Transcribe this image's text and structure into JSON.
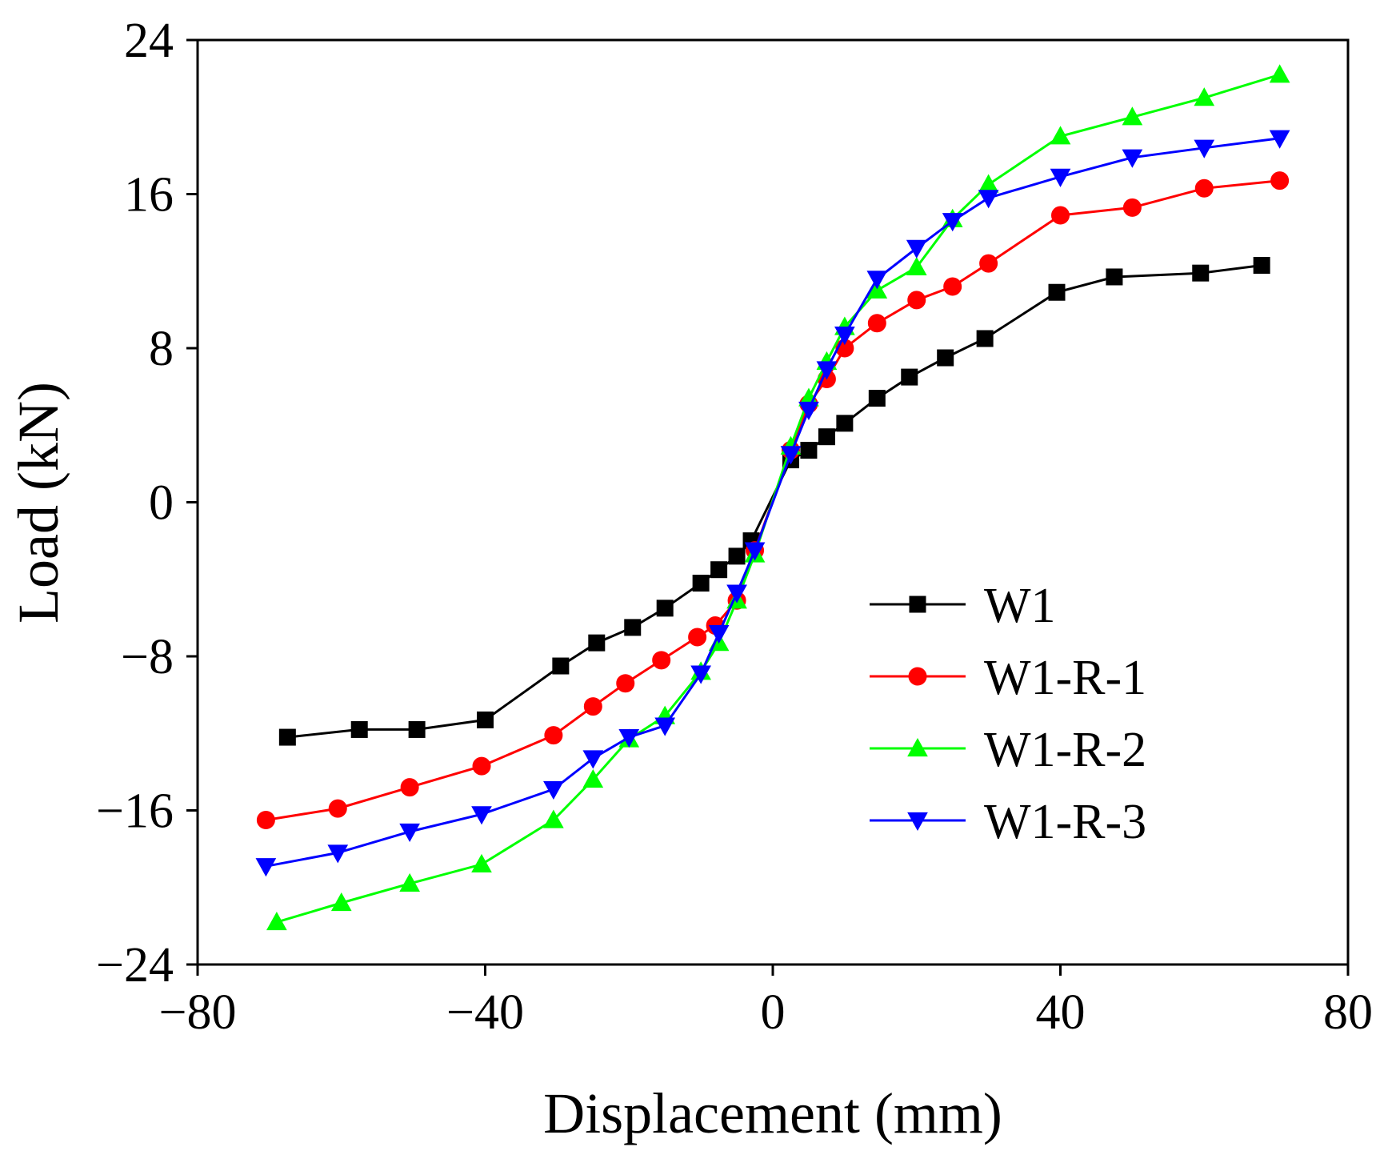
{
  "chart_data": {
    "type": "line",
    "title": "",
    "xlabel": "Displacement (mm)",
    "ylabel": "Load (kN)",
    "xlim": [
      -80,
      80
    ],
    "ylim": [
      -24,
      24
    ],
    "xticks": [
      -80,
      -40,
      0,
      40,
      80
    ],
    "yticks": [
      -24,
      -16,
      -8,
      0,
      8,
      16,
      24
    ],
    "xtick_labels": [
      "−80",
      "−40",
      "0",
      "40",
      "80"
    ],
    "ytick_labels": [
      "−24",
      "−16",
      "−8",
      "0",
      "8",
      "16",
      "24"
    ],
    "grid": false,
    "legend_position": "center-right",
    "series": [
      {
        "name": "W1",
        "color": "#000000",
        "marker": "square",
        "points": [
          [
            -67.5,
            -12.2
          ],
          [
            -57.5,
            -11.8
          ],
          [
            -49.5,
            -11.8
          ],
          [
            -40.0,
            -11.3
          ],
          [
            -29.5,
            -8.5
          ],
          [
            -24.5,
            -7.3
          ],
          [
            -19.5,
            -6.5
          ],
          [
            -15.0,
            -5.5
          ],
          [
            -10.0,
            -4.2
          ],
          [
            -7.5,
            -3.5
          ],
          [
            -5.0,
            -2.8
          ],
          [
            -3.0,
            -2.0
          ],
          [
            2.5,
            2.2
          ],
          [
            5.0,
            2.7
          ],
          [
            7.5,
            3.4
          ],
          [
            10.0,
            4.1
          ],
          [
            14.5,
            5.4
          ],
          [
            19.0,
            6.5
          ],
          [
            24.0,
            7.5
          ],
          [
            29.5,
            8.5
          ],
          [
            39.5,
            10.9
          ],
          [
            47.5,
            11.7
          ],
          [
            59.5,
            11.9
          ],
          [
            68.0,
            12.3
          ]
        ]
      },
      {
        "name": "W1-R-1",
        "color": "#ff0000",
        "marker": "circle",
        "points": [
          [
            -70.5,
            -16.5
          ],
          [
            -60.5,
            -15.9
          ],
          [
            -50.5,
            -14.8
          ],
          [
            -40.5,
            -13.7
          ],
          [
            -30.5,
            -12.1
          ],
          [
            -25.0,
            -10.6
          ],
          [
            -20.5,
            -9.4
          ],
          [
            -15.5,
            -8.2
          ],
          [
            -10.5,
            -7.0
          ],
          [
            -8.0,
            -6.4
          ],
          [
            -5.0,
            -5.1
          ],
          [
            -2.5,
            -2.5
          ],
          [
            2.5,
            2.7
          ],
          [
            5.0,
            5.1
          ],
          [
            7.5,
            6.4
          ],
          [
            10.0,
            8.0
          ],
          [
            14.5,
            9.3
          ],
          [
            20.0,
            10.5
          ],
          [
            25.0,
            11.2
          ],
          [
            30.0,
            12.4
          ],
          [
            40.0,
            14.9
          ],
          [
            50.0,
            15.3
          ],
          [
            60.0,
            16.3
          ],
          [
            70.5,
            16.7
          ]
        ]
      },
      {
        "name": "W1-R-2",
        "color": "#00ff00",
        "marker": "triangle-up",
        "points": [
          [
            -69.0,
            -21.8
          ],
          [
            -60.0,
            -20.8
          ],
          [
            -50.5,
            -19.8
          ],
          [
            -40.5,
            -18.8
          ],
          [
            -30.5,
            -16.5
          ],
          [
            -25.0,
            -14.4
          ],
          [
            -20.0,
            -12.3
          ],
          [
            -15.0,
            -11.1
          ],
          [
            -10.0,
            -8.8
          ],
          [
            -7.5,
            -7.3
          ],
          [
            -5.0,
            -5.1
          ],
          [
            -2.5,
            -2.7
          ],
          [
            2.5,
            2.9
          ],
          [
            5.0,
            5.4
          ],
          [
            7.5,
            7.3
          ],
          [
            10.0,
            9.1
          ],
          [
            14.5,
            11.0
          ],
          [
            20.0,
            12.2
          ],
          [
            25.0,
            14.7
          ],
          [
            30.0,
            16.5
          ],
          [
            40.0,
            19.0
          ],
          [
            50.0,
            20.0
          ],
          [
            60.0,
            21.0
          ],
          [
            70.5,
            22.2
          ]
        ]
      },
      {
        "name": "W1-R-3",
        "color": "#0000ff",
        "marker": "triangle-down",
        "points": [
          [
            -70.5,
            -18.9
          ],
          [
            -60.5,
            -18.2
          ],
          [
            -50.5,
            -17.1
          ],
          [
            -40.5,
            -16.2
          ],
          [
            -30.5,
            -14.9
          ],
          [
            -25.0,
            -13.3
          ],
          [
            -20.0,
            -12.2
          ],
          [
            -15.0,
            -11.6
          ],
          [
            -10.0,
            -8.9
          ],
          [
            -7.5,
            -6.8
          ],
          [
            -5.0,
            -4.7
          ],
          [
            -2.5,
            -2.5
          ],
          [
            2.5,
            2.5
          ],
          [
            5.0,
            4.8
          ],
          [
            7.5,
            6.9
          ],
          [
            10.0,
            8.7
          ],
          [
            14.5,
            11.6
          ],
          [
            20.0,
            13.2
          ],
          [
            25.0,
            14.6
          ],
          [
            30.0,
            15.8
          ],
          [
            40.0,
            16.9
          ],
          [
            50.0,
            17.9
          ],
          [
            60.0,
            18.4
          ],
          [
            70.5,
            18.9
          ]
        ]
      }
    ]
  }
}
